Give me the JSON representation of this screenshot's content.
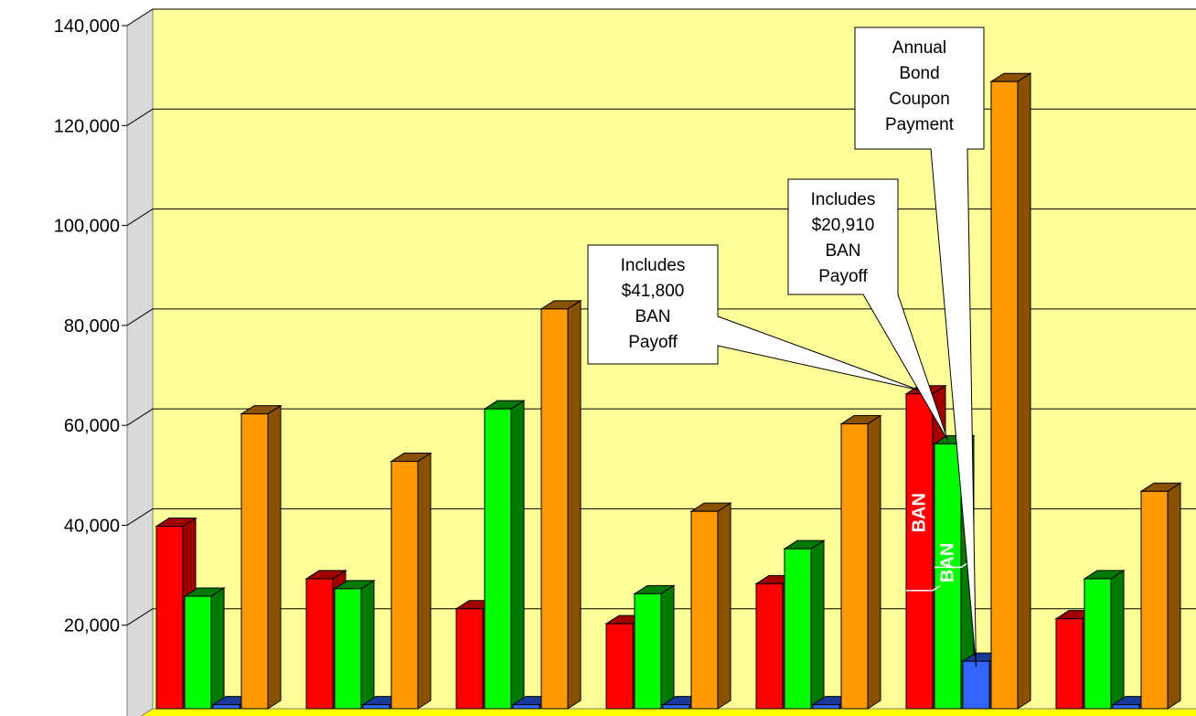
{
  "chart_data": {
    "type": "bar",
    "title": "",
    "xlabel": "",
    "ylabel": "",
    "ylim": [
      0,
      140000
    ],
    "yticks": [
      "20,000",
      "40,000",
      "60,000",
      "80,000",
      "100,000",
      "120,000",
      "140,000"
    ],
    "grid": true,
    "style": "3d",
    "background": "#ffff99",
    "floor_color": "#ffff00",
    "series": [
      {
        "color": "#ff0000",
        "side_color": "#a00000",
        "values": [
          36500,
          26000,
          20000,
          17000,
          25000,
          63000,
          18000
        ]
      },
      {
        "color": "#00ff00",
        "side_color": "#007a00",
        "values": [
          22500,
          24000,
          60000,
          23000,
          32000,
          53000,
          26000
        ]
      },
      {
        "color": "#3366ff",
        "side_color": "#1a3a99",
        "values": [
          800,
          800,
          800,
          800,
          800,
          9500,
          800
        ]
      },
      {
        "color": "#ff9900",
        "side_color": "#8a5200",
        "values": [
          59000,
          49500,
          80000,
          39500,
          57000,
          125500,
          43500
        ]
      }
    ],
    "bar_labels": [
      {
        "group": 5,
        "series": 0,
        "text": "BAN"
      },
      {
        "group": 5,
        "series": 1,
        "text": "BAN"
      }
    ],
    "annotations": [
      {
        "lines": [
          "Includes",
          "$41,800",
          "BAN",
          "Payoff"
        ],
        "target_group": 5,
        "target_series": 0
      },
      {
        "lines": [
          "Includes",
          "$20,910",
          "BAN",
          "Payoff"
        ],
        "target_group": 5,
        "target_series": 1
      },
      {
        "lines": [
          "Annual",
          "Bond",
          "Coupon",
          "Payment"
        ],
        "target_group": 5,
        "target_series": 2
      }
    ]
  }
}
